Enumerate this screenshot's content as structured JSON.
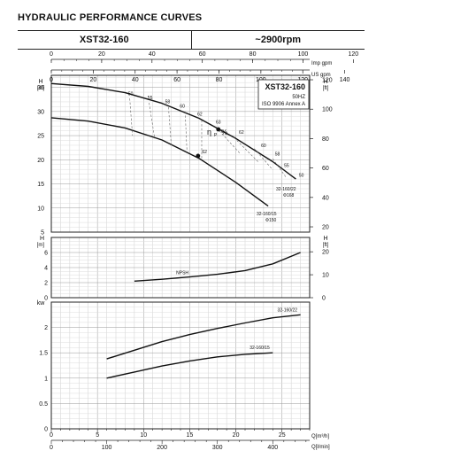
{
  "header": {
    "title": "HYDRAULIC PERFORMANCE CURVES",
    "model": "XST32-160",
    "speed": "~2900rpm"
  },
  "chart_info": {
    "model": "XST32-160",
    "freq": "50HZ",
    "standard": "ISO 9906 Annex A",
    "eta_label": "η",
    "eta_sub": "P",
    "eta_unit": "%"
  },
  "axes": {
    "imp_gpm_label": "Imp gpm",
    "us_gpm_label": "US gpm",
    "q_m3h_label": "Q[m³/h]",
    "q_lmin_label": "Q[l/min]",
    "h_m_label": "[m]",
    "h_ft_label": "[ft]",
    "h_letter": "H",
    "kw_label": "kw",
    "imp_gpm_ticks": [
      "0",
      "20",
      "40",
      "60",
      "80",
      "100",
      "120"
    ],
    "us_gpm_ticks": [
      "0",
      "20",
      "40",
      "60",
      "80",
      "100",
      "120",
      "140"
    ],
    "q_m3h_ticks": [
      "0",
      "5",
      "10",
      "15",
      "20",
      "25"
    ],
    "q_lmin_ticks": [
      "100",
      "200",
      "300",
      "400"
    ]
  },
  "chart_data": [
    {
      "type": "line",
      "panel": "head",
      "xlabel": "Q[m³/h]",
      "ylabel": "H [m]",
      "xlim": [
        0,
        28
      ],
      "ylim": [
        5,
        37.5
      ],
      "y_ticks": [
        "5",
        "10",
        "15",
        "20",
        "25",
        "30",
        "35"
      ],
      "y2_ticks": [
        "20",
        "40",
        "60",
        "80",
        "100",
        "120"
      ],
      "series": [
        {
          "name": "32-160/22",
          "sub": "Φ168",
          "x": [
            0,
            4,
            8,
            12,
            16,
            20,
            24,
            26.5
          ],
          "y": [
            35.8,
            35.2,
            33.9,
            31.7,
            28.6,
            24.4,
            19.6,
            16.0
          ]
        },
        {
          "name": "32-160/15",
          "sub": "Φ150",
          "x": [
            0,
            4,
            8,
            12,
            16,
            20,
            23.5
          ],
          "y": [
            28.7,
            28.0,
            26.6,
            24.1,
            20.3,
            15.3,
            10.4
          ]
        }
      ],
      "efficiency_labels": [
        "50",
        "55",
        "58",
        "60",
        "62",
        "63",
        "62",
        "60",
        "58",
        "55",
        "50",
        "62"
      ],
      "annotations": [
        "63",
        "62"
      ]
    },
    {
      "type": "line",
      "panel": "npsh",
      "xlabel": "Q[m³/h]",
      "ylabel": "H [m]",
      "xlim": [
        0,
        28
      ],
      "ylim": [
        0,
        8
      ],
      "y_ticks": [
        "0",
        "2",
        "4",
        "6",
        "8"
      ],
      "y2_ticks": [
        "0",
        "10",
        "20"
      ],
      "series": [
        {
          "name": "NPSH",
          "x": [
            9,
            12,
            15,
            18,
            21,
            24,
            27
          ],
          "y": [
            2.2,
            2.45,
            2.75,
            3.1,
            3.6,
            4.5,
            6.0
          ]
        }
      ]
    },
    {
      "type": "line",
      "panel": "power",
      "xlabel": "Q[m³/h]",
      "ylabel": "kw",
      "xlim": [
        0,
        28
      ],
      "ylim": [
        0,
        2.5
      ],
      "y_ticks": [
        "0",
        "0.5",
        "1",
        "1.5",
        "2"
      ],
      "series": [
        {
          "name": "32-160/22",
          "x": [
            6,
            9,
            12,
            15,
            18,
            21,
            24,
            27
          ],
          "y": [
            1.38,
            1.55,
            1.72,
            1.86,
            1.98,
            2.09,
            2.19,
            2.25
          ]
        },
        {
          "name": "32-160/15",
          "x": [
            6,
            9,
            12,
            15,
            18,
            21,
            24
          ],
          "y": [
            1.0,
            1.12,
            1.24,
            1.34,
            1.42,
            1.47,
            1.5
          ]
        }
      ]
    }
  ]
}
